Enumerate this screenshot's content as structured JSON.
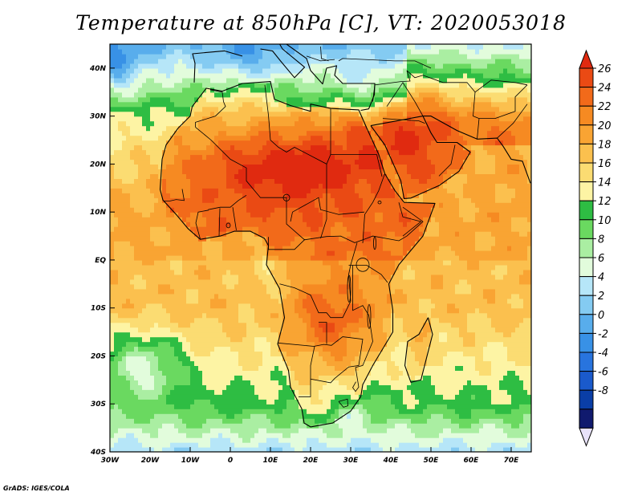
{
  "title": "Temperature at 850hPa [C], VT: 2020053018",
  "credit": "GrADS: IGES/COLA",
  "map": {
    "lon_range": [
      -30,
      75
    ],
    "lat_range": [
      -40,
      45
    ],
    "lon_ticks": [
      {
        "value": -30,
        "label": "30W"
      },
      {
        "value": -20,
        "label": "20W"
      },
      {
        "value": -10,
        "label": "10W"
      },
      {
        "value": 0,
        "label": "0"
      },
      {
        "value": 10,
        "label": "10E"
      },
      {
        "value": 20,
        "label": "20E"
      },
      {
        "value": 30,
        "label": "30E"
      },
      {
        "value": 40,
        "label": "40E"
      },
      {
        "value": 50,
        "label": "50E"
      },
      {
        "value": 60,
        "label": "60E"
      },
      {
        "value": 70,
        "label": "70E"
      }
    ],
    "lat_ticks": [
      {
        "value": 40,
        "label": "40N"
      },
      {
        "value": 30,
        "label": "30N"
      },
      {
        "value": 20,
        "label": "20N"
      },
      {
        "value": 10,
        "label": "10N"
      },
      {
        "value": 0,
        "label": "EQ"
      },
      {
        "value": -10,
        "label": "10S"
      },
      {
        "value": -20,
        "label": "20S"
      },
      {
        "value": -30,
        "label": "30S"
      },
      {
        "value": -40,
        "label": "40S"
      }
    ],
    "field_blobs": [
      {
        "lon": 15,
        "lat": 20,
        "sx": 22,
        "sy": 8,
        "a": 8
      },
      {
        "lon": 45,
        "lat": 28,
        "sx": 16,
        "sy": 10,
        "a": 8
      },
      {
        "lon": 70,
        "lat": 25,
        "sx": 8,
        "sy": 10,
        "a": 4
      },
      {
        "lon": 25,
        "lat": -14,
        "sx": 8,
        "sy": 8,
        "a": 5
      },
      {
        "lon": 35,
        "lat": 36,
        "sx": 7,
        "sy": 4,
        "a": -5
      },
      {
        "lon": -22,
        "lat": -22,
        "sx": 10,
        "sy": 7,
        "a": -8
      },
      {
        "lon": -28,
        "lat": 40,
        "sx": 6,
        "sy": 6,
        "a": -5
      },
      {
        "lon": 12,
        "lat": -2,
        "sx": 6,
        "sy": 5,
        "a": -3
      },
      {
        "lon": 30,
        "lat": -31,
        "sx": 6,
        "sy": 4,
        "a": -4
      },
      {
        "lon": 5,
        "lat": 42,
        "sx": 8,
        "sy": 4,
        "a": -3
      }
    ],
    "coastline_africa": [
      [
        -17,
        21
      ],
      [
        -16,
        24
      ],
      [
        -13,
        27.5
      ],
      [
        -10,
        30
      ],
      [
        -9.5,
        32
      ],
      [
        -6,
        35.8
      ],
      [
        -2,
        35.2
      ],
      [
        3,
        36.8
      ],
      [
        10,
        37.2
      ],
      [
        11,
        33.5
      ],
      [
        15,
        32.2
      ],
      [
        20,
        31
      ],
      [
        20,
        32.5
      ],
      [
        25,
        31.6
      ],
      [
        32,
        31.3
      ],
      [
        34,
        27.5
      ],
      [
        37,
        22
      ],
      [
        38.5,
        18
      ],
      [
        41,
        14.5
      ],
      [
        43.3,
        12
      ],
      [
        51,
        11.8
      ],
      [
        48,
        5
      ],
      [
        42,
        -1
      ],
      [
        39.5,
        -5
      ],
      [
        40.5,
        -10.5
      ],
      [
        40.5,
        -15
      ],
      [
        35.5,
        -22
      ],
      [
        33,
        -26
      ],
      [
        32.5,
        -28.5
      ],
      [
        30,
        -31.5
      ],
      [
        25.5,
        -34
      ],
      [
        20,
        -34.8
      ],
      [
        18.4,
        -34
      ],
      [
        17.8,
        -31
      ],
      [
        15,
        -26.5
      ],
      [
        14.5,
        -23
      ],
      [
        11.8,
        -17.5
      ],
      [
        13.5,
        -12
      ],
      [
        12.3,
        -6
      ],
      [
        9,
        -1
      ],
      [
        9.5,
        3
      ],
      [
        8.5,
        4.5
      ],
      [
        5,
        6
      ],
      [
        1,
        6
      ],
      [
        -2.5,
        5
      ],
      [
        -7.5,
        4.3
      ],
      [
        -10.5,
        6.5
      ],
      [
        -13.5,
        9.5
      ],
      [
        -16.8,
        12.5
      ],
      [
        -17.5,
        14.7
      ],
      [
        -17,
        21
      ]
    ],
    "coastline_madagascar": [
      [
        49.3,
        -12
      ],
      [
        50.4,
        -15.5
      ],
      [
        47.5,
        -25
      ],
      [
        45,
        -25.5
      ],
      [
        43.5,
        -22
      ],
      [
        44.2,
        -17
      ],
      [
        47,
        -15.5
      ],
      [
        49.3,
        -12
      ]
    ],
    "coastline_arabia": [
      [
        35,
        28
      ],
      [
        38.5,
        24
      ],
      [
        42.5,
        16.5
      ],
      [
        43.3,
        12.8
      ],
      [
        45,
        12.9
      ],
      [
        52,
        15.5
      ],
      [
        57,
        18.5
      ],
      [
        59.8,
        22.5
      ],
      [
        56.5,
        24.5
      ],
      [
        51.5,
        24.5
      ],
      [
        50,
        26.5
      ],
      [
        48,
        30
      ],
      [
        35,
        28
      ]
    ],
    "coastline_iran_asia": [
      [
        48,
        30
      ],
      [
        50,
        30
      ],
      [
        56.5,
        27
      ],
      [
        61.5,
        25.2
      ],
      [
        66.5,
        25.4
      ],
      [
        68,
        23.7
      ],
      [
        70,
        21
      ],
      [
        72.8,
        20.6
      ],
      [
        74.8,
        16
      ]
    ],
    "coastline_iberia": [
      [
        -9,
        37
      ],
      [
        -8.8,
        41
      ],
      [
        -9.4,
        43
      ],
      [
        -1.5,
        43.6
      ],
      [
        3,
        42.5
      ]
    ],
    "coastline_italy": [
      [
        7.5,
        44
      ],
      [
        10.5,
        43.6
      ],
      [
        12.5,
        41.5
      ],
      [
        16,
        38
      ],
      [
        18.5,
        40.2
      ],
      [
        13,
        44
      ],
      [
        12.3,
        45
      ]
    ],
    "coastline_balkans_turkey": [
      [
        14,
        45
      ],
      [
        19,
        42
      ],
      [
        20,
        39.5
      ],
      [
        23,
        36.7
      ],
      [
        24,
        40
      ],
      [
        26.5,
        40.5
      ],
      [
        26,
        38.5
      ],
      [
        28,
        36.8
      ],
      [
        36,
        36.8
      ],
      [
        35.9,
        34.5
      ],
      [
        34.5,
        31.5
      ],
      [
        32.5,
        31.2
      ]
    ],
    "borders": [
      [
        [
          -8.7,
          27.7
        ],
        [
          -4.8,
          25
        ],
        [
          0,
          21
        ],
        [
          4,
          19.2
        ],
        [
          4,
          16.5
        ],
        [
          7.5,
          13
        ],
        [
          14,
          13
        ],
        [
          14,
          7.5
        ],
        [
          18.5,
          4.2
        ],
        [
          24,
          4.9
        ],
        [
          27.5,
          5
        ],
        [
          31,
          3.6
        ],
        [
          34,
          4.5
        ],
        [
          35.5,
          5
        ],
        [
          42,
          4
        ],
        [
          44,
          5
        ],
        [
          48,
          8
        ],
        [
          43,
          11
        ]
      ],
      [
        [
          -5,
          35.5
        ],
        [
          -2,
          35
        ],
        [
          -1.7,
          33
        ],
        [
          -1.2,
          32
        ],
        [
          -3.7,
          30
        ],
        [
          -8.7,
          28.7
        ],
        [
          -8.7,
          27.7
        ]
      ],
      [
        [
          8.6,
          36.5
        ],
        [
          9.5,
          30.2
        ],
        [
          10,
          25
        ],
        [
          12,
          23.5
        ],
        [
          14,
          22.5
        ],
        [
          16,
          23.5
        ],
        [
          24,
          20
        ],
        [
          25,
          22
        ],
        [
          25,
          31.5
        ]
      ],
      [
        [
          25,
          22
        ],
        [
          36.5,
          22
        ]
      ],
      [
        [
          24,
          20
        ],
        [
          24,
          8.5
        ],
        [
          22.5,
          4.5
        ]
      ],
      [
        [
          -12,
          14.8
        ],
        [
          -11.5,
          12.4
        ],
        [
          -13.5,
          12.6
        ],
        [
          -15,
          12.3
        ],
        [
          -16.7,
          12.3
        ]
      ],
      [
        [
          -5.5,
          10.5
        ],
        [
          -2.5,
          11
        ],
        [
          0,
          11
        ],
        [
          2,
          12.4
        ],
        [
          4,
          13.5
        ]
      ],
      [
        [
          1.5,
          6.2
        ],
        [
          0.6,
          11
        ]
      ],
      [
        [
          -2.8,
          5
        ],
        [
          -2.6,
          10.8
        ]
      ],
      [
        [
          -7.5,
          4.4
        ],
        [
          -8.6,
          7.7
        ],
        [
          -8,
          10
        ],
        [
          -5.4,
          10.4
        ]
      ],
      [
        [
          9.5,
          4.8
        ],
        [
          9.5,
          2.2
        ],
        [
          16,
          2.2
        ],
        [
          18.6,
          4.3
        ]
      ],
      [
        [
          12.3,
          -5
        ],
        [
          16,
          -5.8
        ],
        [
          20,
          -7.3
        ],
        [
          22,
          -11
        ],
        [
          24,
          -11
        ],
        [
          25,
          -12
        ],
        [
          28,
          -12
        ],
        [
          30,
          -8.6
        ],
        [
          29.5,
          -3
        ],
        [
          30,
          -1
        ],
        [
          31.6,
          3.6
        ]
      ],
      [
        [
          29.5,
          -1.1
        ],
        [
          34,
          -1.1
        ],
        [
          37.6,
          -3
        ],
        [
          39.2,
          -4.7
        ]
      ],
      [
        [
          30.5,
          -1.1
        ],
        [
          30.5,
          -10.5
        ],
        [
          33,
          -9.5
        ],
        [
          34.5,
          -11.5
        ],
        [
          35.5,
          -17
        ],
        [
          33,
          -22
        ],
        [
          31.2,
          -22.4
        ]
      ],
      [
        [
          11.8,
          -17.3
        ],
        [
          20.8,
          -18
        ],
        [
          23.3,
          -17.6
        ],
        [
          25.2,
          -17.8
        ],
        [
          28,
          -16
        ],
        [
          33,
          -16.5
        ],
        [
          32,
          -22
        ],
        [
          29.5,
          -22.3
        ],
        [
          26,
          -24.7
        ],
        [
          25,
          -25.6
        ],
        [
          20,
          -24.8
        ],
        [
          20,
          -28.5
        ],
        [
          17,
          -28.5
        ]
      ],
      [
        [
          20,
          -24.8
        ],
        [
          20,
          -22
        ],
        [
          21,
          -18
        ]
      ],
      [
        [
          22,
          -13
        ],
        [
          24,
          -13
        ],
        [
          24,
          -17.5
        ]
      ],
      [
        [
          33,
          3.5
        ],
        [
          33.5,
          9.5
        ],
        [
          35.5,
          12
        ],
        [
          37,
          14.5
        ],
        [
          38.5,
          18
        ]
      ],
      [
        [
          42,
          12
        ],
        [
          43,
          9
        ],
        [
          47.5,
          8
        ],
        [
          43,
          5
        ]
      ],
      [
        [
          36.5,
          22
        ],
        [
          37.8,
          17.4
        ]
      ],
      [
        [
          15,
          8
        ],
        [
          15.5,
          10
        ],
        [
          22,
          13
        ],
        [
          22.5,
          10.5
        ],
        [
          27,
          9.5
        ],
        [
          33.4,
          10
        ]
      ],
      [
        [
          38,
          29.5
        ],
        [
          47,
          29
        ],
        [
          48.5,
          28.5
        ]
      ],
      [
        [
          39,
          32
        ],
        [
          43,
          37
        ],
        [
          46,
          33
        ],
        [
          48,
          30
        ]
      ],
      [
        [
          52,
          17.5
        ],
        [
          55,
          20
        ],
        [
          56,
          24
        ]
      ],
      [
        [
          44,
          39.5
        ],
        [
          46,
          38
        ],
        [
          48,
          38.5
        ],
        [
          53,
          37
        ],
        [
          59,
          37
        ],
        [
          61,
          35
        ],
        [
          60.5,
          30
        ],
        [
          62,
          29.5
        ],
        [
          61.5,
          25.2
        ]
      ],
      [
        [
          61,
          35
        ],
        [
          65,
          37.5
        ],
        [
          71,
          37
        ],
        [
          74,
          36.5
        ]
      ],
      [
        [
          62,
          29.5
        ],
        [
          66,
          29.5
        ],
        [
          71,
          31
        ],
        [
          71,
          34
        ],
        [
          74,
          36.5
        ]
      ],
      [
        [
          66.5,
          25.4
        ],
        [
          70.5,
          28.5
        ],
        [
          74,
          32.5
        ]
      ],
      [
        [
          35.5,
          33
        ],
        [
          36,
          36.5
        ],
        [
          42.5,
          37.2
        ],
        [
          44.8,
          37.3
        ],
        [
          44,
          39.5
        ]
      ],
      [
        [
          27,
          41.5
        ],
        [
          28,
          42
        ],
        [
          41,
          41.5
        ],
        [
          46,
          41.5
        ],
        [
          50,
          40
        ]
      ],
      [
        [
          19,
          42.5
        ],
        [
          22.5,
          41.5
        ],
        [
          26,
          41.8
        ]
      ],
      [
        [
          22.5,
          44.5
        ],
        [
          22.7,
          42
        ],
        [
          24.5,
          41.5
        ]
      ],
      [
        [
          31.2,
          -22.4
        ],
        [
          32,
          -26.5
        ],
        [
          31.2,
          -27.4
        ],
        [
          30.5,
          -26.6
        ],
        [
          31.3,
          -25.4
        ]
      ],
      [
        [
          27,
          -29.5
        ],
        [
          29.2,
          -29
        ],
        [
          29.3,
          -30.4
        ],
        [
          28.2,
          -30.7
        ],
        [
          27,
          -29.5
        ]
      ]
    ],
    "lakes": [
      {
        "lon": 33,
        "lat": -1,
        "rx": 1.6,
        "ry": 1.4
      },
      {
        "lon": 29.6,
        "lat": -6,
        "rx": 0.4,
        "ry": 2.8
      },
      {
        "lon": 34.6,
        "lat": -11.8,
        "rx": 0.4,
        "ry": 2.5
      },
      {
        "lon": 36,
        "lat": 3.5,
        "rx": 0.3,
        "ry": 1.3
      },
      {
        "lon": 14,
        "lat": 13,
        "rx": 0.8,
        "ry": 0.7
      },
      {
        "lon": -0.5,
        "lat": 7.2,
        "rx": 0.5,
        "ry": 0.5
      },
      {
        "lon": 37.2,
        "lat": 12,
        "rx": 0.4,
        "ry": 0.3
      }
    ]
  },
  "colorbar": {
    "labels": [
      "26",
      "24",
      "22",
      "20",
      "18",
      "16",
      "14",
      "12",
      "10",
      "8",
      "6",
      "4",
      "2",
      "0",
      "-2",
      "-4",
      "-6",
      "-8"
    ],
    "colors": [
      "#e02a10",
      "#ea4a14",
      "#f26a1a",
      "#f68a22",
      "#f9a433",
      "#fbc04e",
      "#fbdc72",
      "#fdf4a4",
      "#2ebd43",
      "#6ad960",
      "#aaeea2",
      "#e2fcdc",
      "#b6e6f8",
      "#84cbf2",
      "#58adec",
      "#3891e6",
      "#2874de",
      "#1a5acc",
      "#0a3ea6",
      "#101a6e"
    ],
    "under_color": "#e8e2fa"
  }
}
